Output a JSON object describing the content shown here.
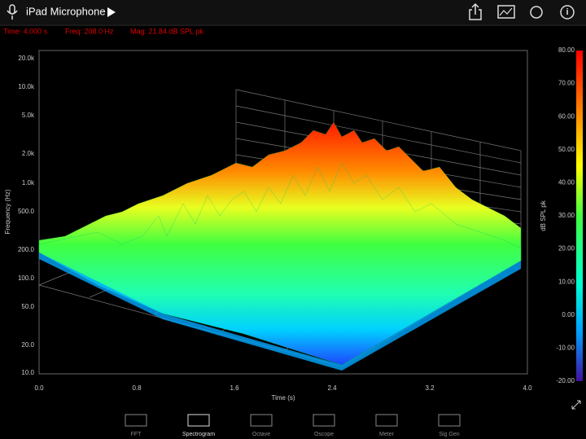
{
  "header": {
    "title": "iPad Microphone"
  },
  "status": {
    "time": "Time: 4.000 s",
    "freq": "Freq: 208.0 Hz",
    "mag": "Mag: 21.84 dB SPL pk"
  },
  "plot": {
    "y_axis_title": "Frequency (Hz)",
    "y_ticks": [
      "20.0k",
      "10.0k",
      "5.0k",
      "2.0k",
      "1.0k",
      "500.0",
      "200.0",
      "100.0",
      "50.0",
      "20.0",
      "10.0"
    ],
    "x_axis_title": "Time (s)",
    "x_ticks": [
      "0.0",
      "0.8",
      "1.6",
      "2.4",
      "3.2",
      "4.0"
    ],
    "colorbar_title": "dB SPL pk",
    "colorbar_ticks": [
      "80.00",
      "70.00",
      "60.00",
      "50.00",
      "40.00",
      "30.00",
      "20.00",
      "10.00",
      "0.00",
      "-10.00",
      "-20.00"
    ]
  },
  "tabs": [
    "FFT",
    "Spectrogram",
    "Octave",
    "Oscope",
    "Meter",
    "Sig Gen"
  ]
}
